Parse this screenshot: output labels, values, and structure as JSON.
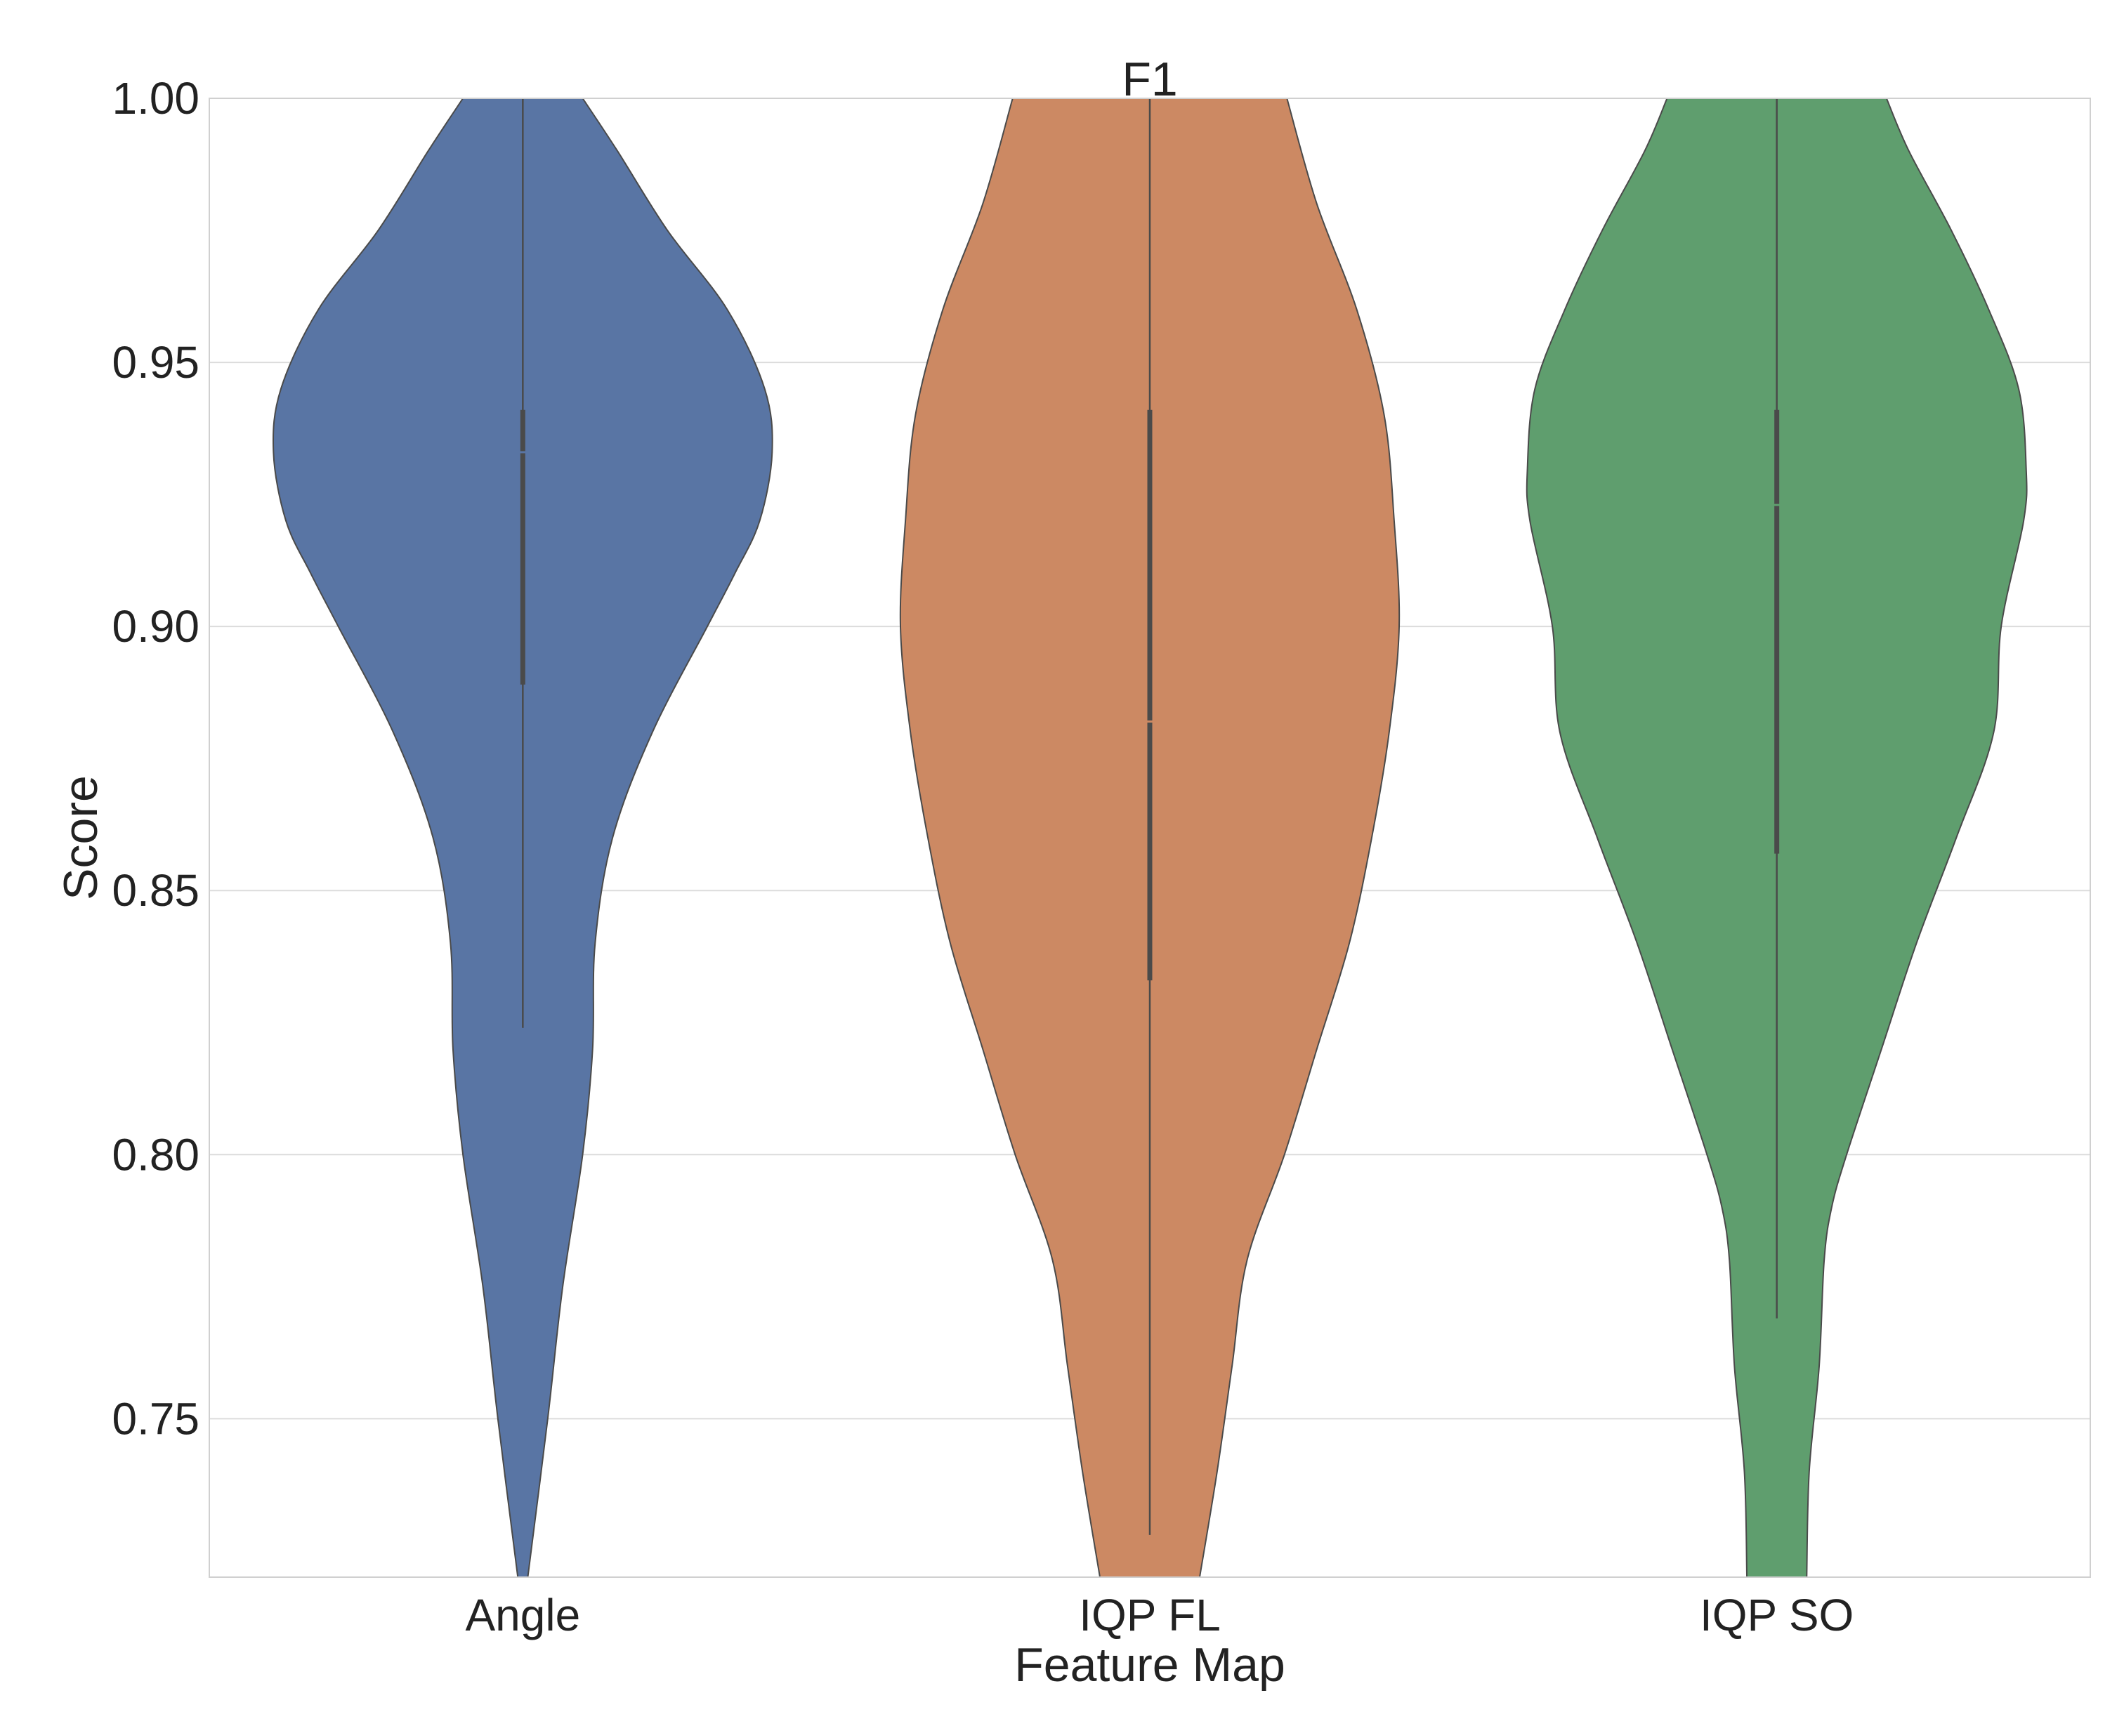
{
  "chart_data": {
    "type": "violin",
    "title": "F1",
    "xlabel": "Feature Map",
    "ylabel": "Score",
    "ylim": [
      0.72,
      1.0
    ],
    "yticks": [
      0.75,
      0.8,
      0.85,
      0.9,
      0.95,
      1.0
    ],
    "ytick_labels": [
      "0.75",
      "0.80",
      "0.85",
      "0.90",
      "0.95",
      "1.00"
    ],
    "grid": "horizontal",
    "categories": [
      "Angle",
      "IQP FL",
      "IQP SO"
    ],
    "violins": [
      {
        "name": "Angle",
        "color": "#5975a4",
        "box": {
          "whisker_low": 0.824,
          "q1": 0.889,
          "median": 0.933,
          "q3": 0.941,
          "whisker_high": 1.0
        },
        "profile_max_width": 1.0,
        "profile": [
          [
            0.72,
            0.02
          ],
          [
            0.75,
            0.1
          ],
          [
            0.775,
            0.16
          ],
          [
            0.8,
            0.24
          ],
          [
            0.82,
            0.28
          ],
          [
            0.84,
            0.29
          ],
          [
            0.86,
            0.36
          ],
          [
            0.88,
            0.52
          ],
          [
            0.9,
            0.74
          ],
          [
            0.91,
            0.85
          ],
          [
            0.92,
            0.95
          ],
          [
            0.933,
            1.0
          ],
          [
            0.945,
            0.97
          ],
          [
            0.96,
            0.82
          ],
          [
            0.975,
            0.58
          ],
          [
            0.99,
            0.38
          ],
          [
            1.0,
            0.24
          ]
        ]
      },
      {
        "name": "IQP FL",
        "color": "#cc8963",
        "box": {
          "whisker_low": 0.728,
          "q1": 0.833,
          "median": 0.882,
          "q3": 0.941,
          "whisker_high": 1.0
        },
        "profile_max_width": 1.0,
        "profile": [
          [
            0.72,
            0.2
          ],
          [
            0.74,
            0.27
          ],
          [
            0.76,
            0.33
          ],
          [
            0.78,
            0.39
          ],
          [
            0.8,
            0.54
          ],
          [
            0.82,
            0.67
          ],
          [
            0.84,
            0.8
          ],
          [
            0.86,
            0.89
          ],
          [
            0.88,
            0.96
          ],
          [
            0.9,
            1.0
          ],
          [
            0.92,
            0.98
          ],
          [
            0.94,
            0.94
          ],
          [
            0.96,
            0.83
          ],
          [
            0.98,
            0.67
          ],
          [
            1.0,
            0.55
          ]
        ]
      },
      {
        "name": "IQP SO",
        "color": "#5f9e6e",
        "box": {
          "whisker_low": 0.769,
          "q1": 0.857,
          "median": 0.923,
          "q3": 0.941,
          "whisker_high": 1.0
        },
        "profile_max_width": 1.0,
        "profile": [
          [
            0.72,
            0.12
          ],
          [
            0.74,
            0.13
          ],
          [
            0.76,
            0.17
          ],
          [
            0.78,
            0.19
          ],
          [
            0.79,
            0.22
          ],
          [
            0.8,
            0.28
          ],
          [
            0.82,
            0.42
          ],
          [
            0.84,
            0.56
          ],
          [
            0.86,
            0.72
          ],
          [
            0.88,
            0.87
          ],
          [
            0.9,
            0.9
          ],
          [
            0.92,
            0.99
          ],
          [
            0.93,
            1.0
          ],
          [
            0.945,
            0.97
          ],
          [
            0.96,
            0.85
          ],
          [
            0.975,
            0.7
          ],
          [
            0.99,
            0.53
          ],
          [
            1.0,
            0.44
          ]
        ]
      }
    ]
  }
}
